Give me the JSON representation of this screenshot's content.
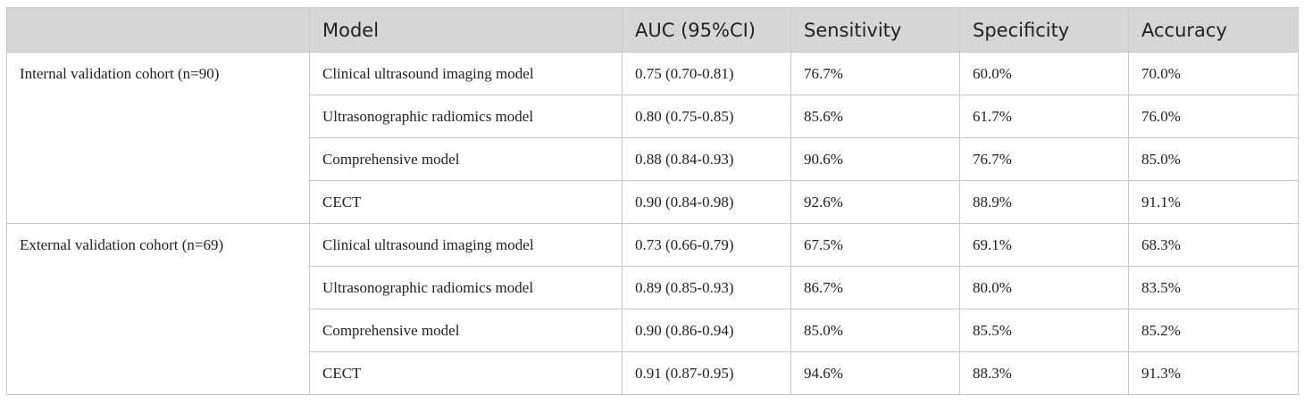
{
  "headers": [
    "",
    "Model",
    "AUC (95%CI)",
    "Sensitivity",
    "Specificity",
    "Accuracy"
  ],
  "groups": [
    {
      "cohort": "Internal validation cohort (n=90)",
      "rows": [
        [
          "Clinical ultrasound imaging model",
          "0.75 (0.70-0.81)",
          "76.7%",
          "60.0%",
          "70.0%"
        ],
        [
          "Ultrasonographic radiomics model",
          "0.80 (0.75-0.85)",
          "85.6%",
          "61.7%",
          "76.0%"
        ],
        [
          "Comprehensive model",
          "0.88 (0.84-0.93)",
          "90.6%",
          "76.7%",
          "85.0%"
        ],
        [
          "CECT",
          "0.90 (0.84-0.98)",
          "92.6%",
          "88.9%",
          "91.1%"
        ]
      ]
    },
    {
      "cohort": "External validation cohort (n=69)",
      "rows": [
        [
          "Clinical ultrasound imaging model",
          "0.73 (0.66-0.79)",
          "67.5%",
          "69.1%",
          "68.3%"
        ],
        [
          "Ultrasonographic radiomics model",
          "0.89 (0.85-0.93)",
          "86.7%",
          "80.0%",
          "83.5%"
        ],
        [
          "Comprehensive model",
          "0.90 (0.86-0.94)",
          "85.0%",
          "85.5%",
          "85.2%"
        ],
        [
          "CECT",
          "0.91 (0.87-0.95)",
          "94.6%",
          "88.3%",
          "91.3%"
        ]
      ]
    }
  ]
}
